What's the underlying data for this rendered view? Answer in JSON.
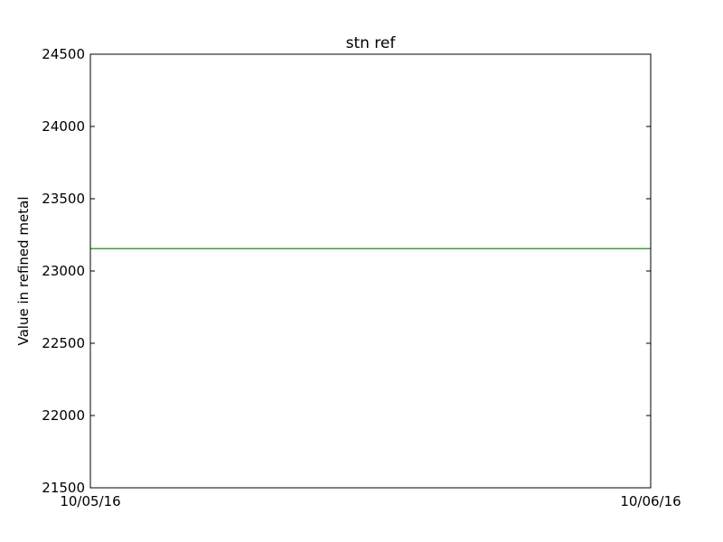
{
  "chart_data": {
    "type": "line",
    "title": "stn ref",
    "xlabel": "",
    "ylabel": "Value in refined metal",
    "x_tick_labels": [
      "10/05/16",
      "10/06/16"
    ],
    "y_ticks": [
      21500,
      22000,
      22500,
      23000,
      23500,
      24000,
      24500
    ],
    "ylim": [
      21500,
      24500
    ],
    "grid": false,
    "series": [
      {
        "color": "#008000",
        "x": [
          "10/05/16",
          "10/06/16"
        ],
        "values": [
          23155,
          23155
        ]
      }
    ]
  }
}
